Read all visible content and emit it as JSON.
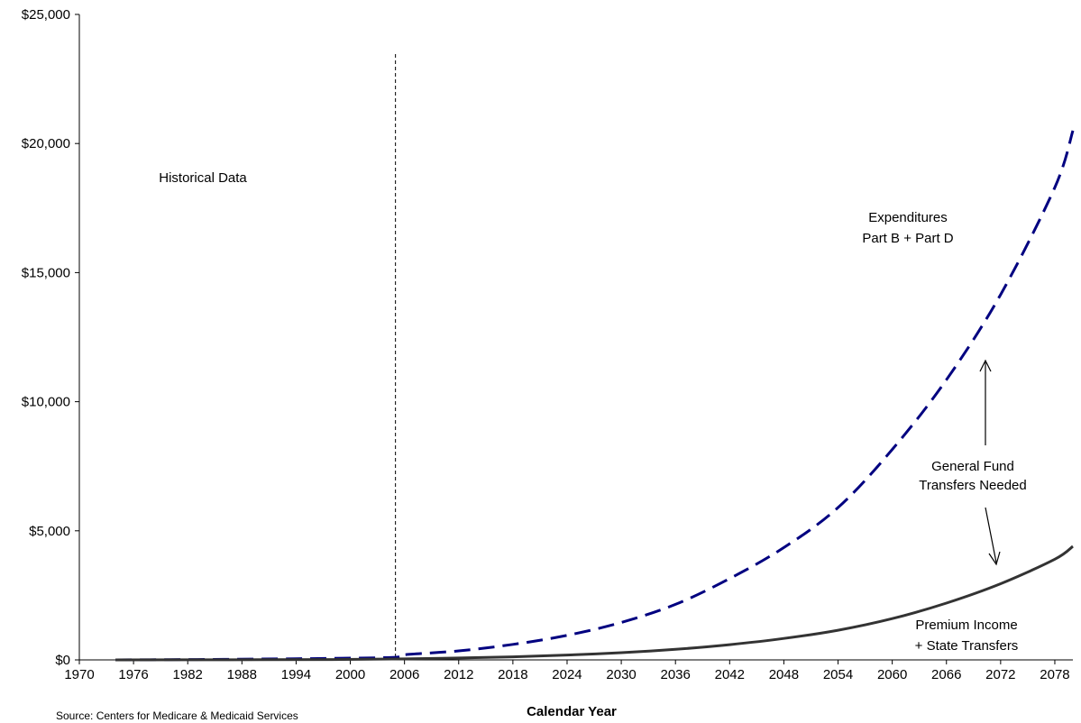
{
  "chart_data": {
    "type": "line",
    "title": "",
    "xlabel": "Calendar Year",
    "ylabel": "",
    "xlim": [
      1970,
      2080
    ],
    "ylim": [
      0,
      25000
    ],
    "grid": false,
    "legend": "none",
    "x_ticks": [
      "1970",
      "1976",
      "1982",
      "1988",
      "1994",
      "2000",
      "2006",
      "2012",
      "2018",
      "2024",
      "2030",
      "2036",
      "2042",
      "2048",
      "2054",
      "2060",
      "2066",
      "2072",
      "2078"
    ],
    "y_ticks": [
      "$0",
      "$5,000",
      "$10,000",
      "$15,000",
      "$20,000",
      "$25,000"
    ],
    "historical_boundary_year": 2005,
    "series": [
      {
        "name": "Expenditures Part B + Part D",
        "color": "#000080",
        "style": "dashed",
        "x": [
          1974,
          1980,
          1986,
          1992,
          1998,
          2005,
          2006,
          2012,
          2018,
          2024,
          2030,
          2036,
          2042,
          2048,
          2054,
          2060,
          2066,
          2072,
          2078,
          2080
        ],
        "y": [
          0,
          10,
          20,
          40,
          60,
          100,
          200,
          350,
          600,
          950,
          1450,
          2150,
          3150,
          4350,
          5900,
          8150,
          10850,
          14150,
          18300,
          20500
        ]
      },
      {
        "name": "Premium Income + State Transfers",
        "color": "#333333",
        "style": "solid",
        "x": [
          1974,
          1986,
          1998,
          2006,
          2012,
          2018,
          2024,
          2030,
          2036,
          2042,
          2048,
          2054,
          2060,
          2066,
          2072,
          2078,
          2080
        ],
        "y": [
          0,
          5,
          15,
          40,
          75,
          120,
          190,
          280,
          410,
          590,
          830,
          1150,
          1600,
          2200,
          2950,
          3900,
          4400
        ]
      }
    ],
    "annotations": {
      "historical": "Historical Data",
      "expenditures_line1": "Expenditures",
      "expenditures_line2": "Part B + Part D",
      "gf_line1": "General Fund",
      "gf_line2": "Transfers Needed",
      "premium_line1": "Premium Income",
      "premium_line2": "+ State Transfers"
    },
    "source": "Source: Centers for Medicare & Medicaid Services"
  }
}
